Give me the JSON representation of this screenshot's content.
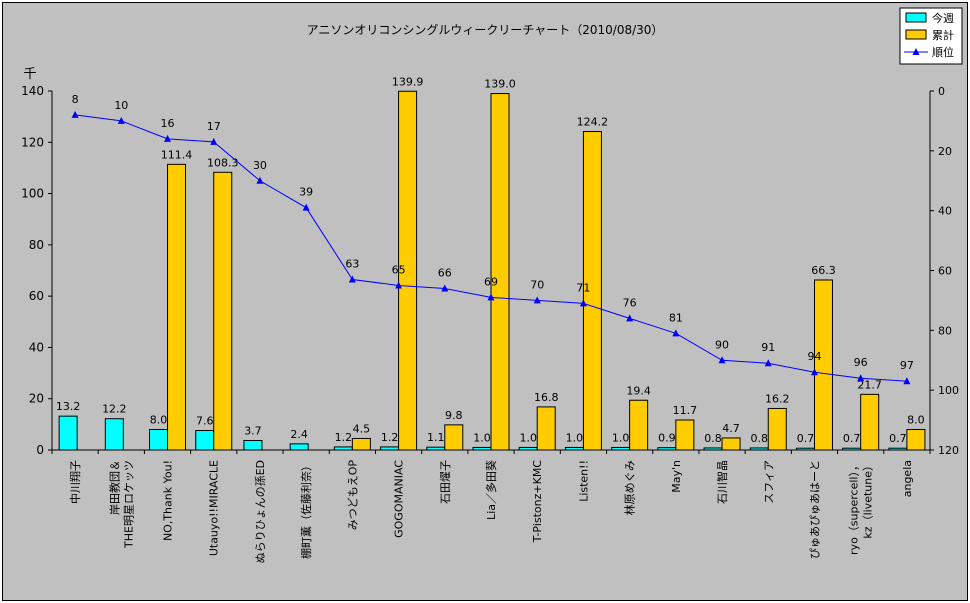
{
  "chart_data": {
    "type": "bar",
    "title": "アニソンオリコンシングルウィークリーチャート（2010/08/30）",
    "y_unit_label": "千",
    "y_left": {
      "min": 0,
      "max": 140,
      "ticks": [
        0,
        20,
        40,
        60,
        80,
        100,
        120,
        140
      ]
    },
    "y_right": {
      "min": 0,
      "max": 120,
      "inverted": true,
      "ticks": [
        0,
        20,
        40,
        60,
        80,
        100,
        120
      ]
    },
    "categories": [
      "中川翔子",
      "岸田教団＆THE明星ロケッツ",
      "NO,Thank You!",
      "Utauyo!!MIRACLE",
      "ぬらりひょんの孫ED",
      "棚町薫（佐藤利奈）",
      "みつどもえOP",
      "GOGOMANIAC",
      "石田燿子",
      "Lia／多田葵",
      "T-Pistonz+KMC",
      "Listen!!",
      "林原めぐみ",
      "May'n",
      "石川智晶",
      "スフィア",
      "ぴゅあぴゅあはーと",
      "ryo（supercell）, kz（livetune）",
      "angela"
    ],
    "category_lines": [
      [
        "中川翔子"
      ],
      [
        "岸田教団＆",
        "THE明星ロケッツ"
      ],
      [
        "NO,Thank You!"
      ],
      [
        "Utauyo!!MIRACLE"
      ],
      [
        "ぬらりひょんの孫ED"
      ],
      [
        "棚町薫（佐藤利奈）"
      ],
      [
        "みつどもえOP"
      ],
      [
        "GOGOMANIAC"
      ],
      [
        "石田燿子"
      ],
      [
        "Lia／多田葵"
      ],
      [
        "T-Pistonz+KMC"
      ],
      [
        "Listen!!"
      ],
      [
        "林原めぐみ"
      ],
      [
        "May'n"
      ],
      [
        "石川智晶"
      ],
      [
        "スフィア"
      ],
      [
        "ぴゅあぴゅあはーと"
      ],
      [
        "ryo（supercell），",
        "kz（livetune）"
      ],
      [
        "angela"
      ]
    ],
    "series": [
      {
        "name": "今週",
        "type": "bar",
        "axis": "left",
        "color": "#00ffff",
        "values": [
          13.2,
          12.2,
          8.0,
          7.6,
          3.7,
          2.4,
          1.2,
          1.2,
          1.1,
          1.0,
          1.0,
          1.0,
          1.0,
          0.9,
          0.8,
          0.8,
          0.7,
          0.7,
          0.7
        ]
      },
      {
        "name": "累計",
        "type": "bar",
        "axis": "left",
        "color": "#ffcc00",
        "values": [
          null,
          null,
          111.4,
          108.3,
          null,
          null,
          4.5,
          139.9,
          9.8,
          139.0,
          16.8,
          124.2,
          19.4,
          11.7,
          4.7,
          16.2,
          66.3,
          21.7,
          8.0
        ]
      },
      {
        "name": "順位",
        "type": "line",
        "axis": "right",
        "color": "#0000ff",
        "values": [
          8,
          10,
          16,
          17,
          30,
          39,
          63,
          65,
          66,
          69,
          70,
          71,
          76,
          81,
          90,
          91,
          94,
          96,
          97
        ]
      }
    ],
    "legend_position": "top-right",
    "grid": false
  }
}
